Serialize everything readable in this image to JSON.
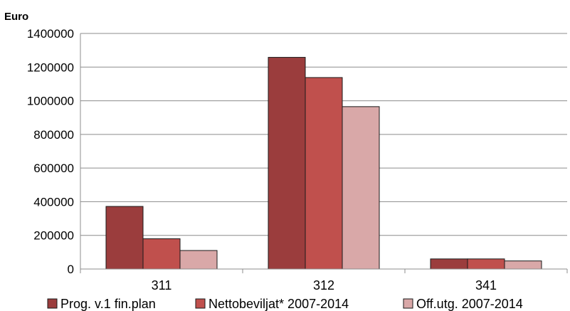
{
  "chart_data": {
    "type": "bar",
    "ylabel": "Euro",
    "categories": [
      "311",
      "312",
      "341"
    ],
    "ylim": [
      0,
      1400000
    ],
    "yticks": [
      "0",
      "200000",
      "400000",
      "600000",
      "800000",
      "1000000",
      "1200000",
      "1400000"
    ],
    "grid": true,
    "legend_position": "bottom",
    "series": [
      {
        "name": "Prog. v.1 fin.plan",
        "color": "#9b3d3d",
        "values": [
          372000,
          1258000,
          60000
        ]
      },
      {
        "name": "Nettobeviljat* 2007-2014",
        "color": "#c0504d",
        "values": [
          180000,
          1138000,
          60000
        ]
      },
      {
        "name": "Off.utg. 2007-2014",
        "color": "#d9a8a8",
        "values": [
          110000,
          965000,
          48000
        ]
      }
    ]
  }
}
